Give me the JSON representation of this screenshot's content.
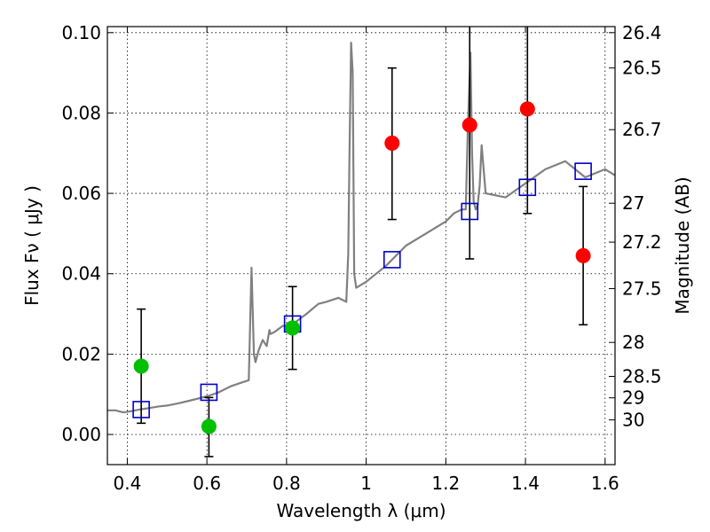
{
  "chart_data": {
    "type": "scatter",
    "xlabel": "Wavelength  λ (μm)",
    "ylabel": "Flux  Fν  ( μJy )",
    "ylabel_right": "Magnitude (AB)",
    "xlim": [
      0.35,
      1.625
    ],
    "ylim": [
      -0.0075,
      0.1015
    ],
    "x_ticks": [
      0.4,
      0.6,
      0.8,
      1.0,
      1.2,
      1.4,
      1.6
    ],
    "x_tick_labels": [
      "0.4",
      "0.6",
      "0.8",
      "1",
      "1.2",
      "1.4",
      "1.6"
    ],
    "y_ticks": [
      0.0,
      0.02,
      0.04,
      0.06,
      0.08,
      0.1
    ],
    "y_tick_labels": [
      "0.00",
      "0.02",
      "0.04",
      "0.06",
      "0.08",
      "0.10"
    ],
    "mag_ticks": [
      "26.4",
      "26.5",
      "26.7",
      "27",
      "27.2",
      "27.5",
      "28",
      "28.5",
      "29",
      "30"
    ],
    "grid": true,
    "colors": {
      "spectrum": "#808080",
      "model": "#0000cc",
      "detection": "#00bf00",
      "infrared": "#ff0000",
      "errorbar": "#000000"
    },
    "series": [
      {
        "marker": "line",
        "x": [
          0.35,
          0.37,
          0.39,
          0.41,
          0.43,
          0.45,
          0.48,
          0.5,
          0.53,
          0.56,
          0.6,
          0.63,
          0.66,
          0.69,
          0.705,
          0.712,
          0.718,
          0.722,
          0.73,
          0.74,
          0.75,
          0.757,
          0.76,
          0.77,
          0.79,
          0.81,
          0.83,
          0.85,
          0.88,
          0.9,
          0.93,
          0.95,
          0.955,
          0.958,
          0.962,
          0.966,
          0.97,
          0.975,
          1.0,
          1.05,
          1.1,
          1.15,
          1.2,
          1.22,
          1.24,
          1.25,
          1.255,
          1.262,
          1.266,
          1.27,
          1.275,
          1.28,
          1.285,
          1.29,
          1.3,
          1.35,
          1.4,
          1.45,
          1.5,
          1.55,
          1.6,
          1.625
        ],
        "values": [
          0.006,
          0.006,
          0.0055,
          0.0058,
          0.0062,
          0.0065,
          0.007,
          0.0072,
          0.0078,
          0.0085,
          0.0095,
          0.0105,
          0.012,
          0.013,
          0.0135,
          0.0415,
          0.02,
          0.018,
          0.021,
          0.0235,
          0.022,
          0.026,
          0.025,
          0.0255,
          0.027,
          0.027,
          0.0285,
          0.03,
          0.0325,
          0.033,
          0.034,
          0.033,
          0.045,
          0.07,
          0.0975,
          0.09,
          0.04,
          0.0365,
          0.038,
          0.042,
          0.047,
          0.05,
          0.053,
          0.055,
          0.056,
          0.056,
          0.075,
          0.095,
          0.07,
          0.058,
          0.056,
          0.057,
          0.062,
          0.072,
          0.06,
          0.059,
          0.0625,
          0.066,
          0.068,
          0.064,
          0.066,
          0.0645
        ]
      },
      {
        "marker": "open-square",
        "x": [
          0.435,
          0.605,
          0.815,
          1.065,
          1.26,
          1.405,
          1.545
        ],
        "values": [
          0.0062,
          0.0105,
          0.0275,
          0.0435,
          0.0555,
          0.0615,
          0.0655
        ]
      },
      {
        "marker": "filled-circle",
        "x": [
          0.435,
          0.605,
          0.815
        ],
        "values": [
          0.017,
          0.002,
          0.0265
        ],
        "yerr_low": [
          0.0028,
          -0.0055,
          0.0162
        ],
        "yerr_high": [
          0.0312,
          0.0092,
          0.0368
        ]
      },
      {
        "marker": "filled-circle",
        "x": [
          1.065,
          1.26,
          1.405,
          1.545
        ],
        "values": [
          0.0725,
          0.077,
          0.081,
          0.0445
        ],
        "yerr_low": [
          0.0535,
          0.0437,
          0.055,
          0.0273
        ],
        "yerr_high": [
          0.0912,
          0.1015,
          0.1015,
          0.0617
        ]
      }
    ]
  }
}
